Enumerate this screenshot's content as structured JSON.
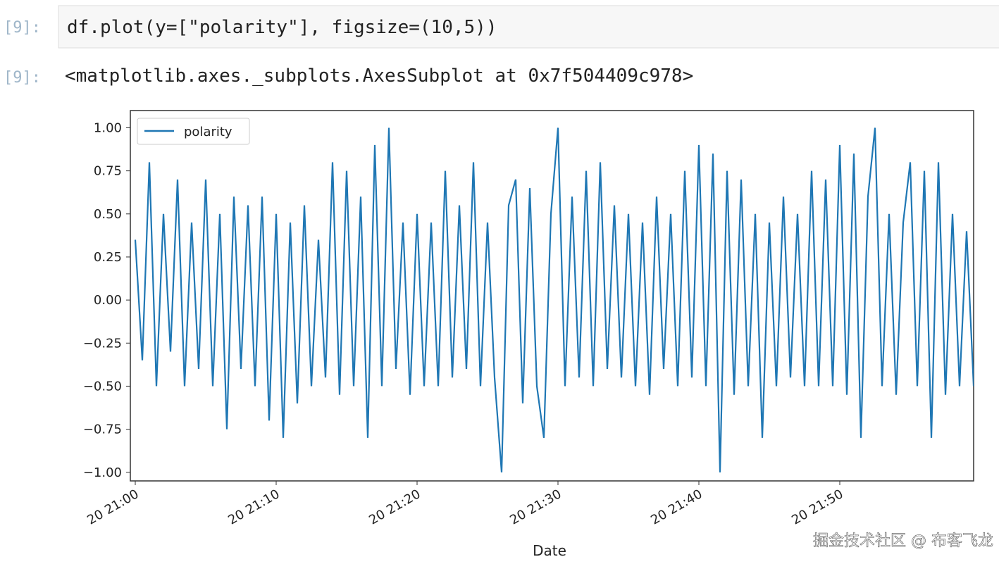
{
  "notebook": {
    "input_prompt": "[9]:",
    "code": "df.plot(y=[\"polarity\"], figsize=(10,5))",
    "output_prompt": "[9]:",
    "output_text": "<matplotlib.axes._subplots.AxesSubplot at 0x7f504409c978>",
    "watermark": "掘金技术社区 @ 布客飞龙"
  },
  "chart_data": {
    "type": "line",
    "x_label": "Date",
    "x": [
      0,
      0.5,
      1,
      1.5,
      2,
      2.5,
      3,
      3.5,
      4,
      4.5,
      5,
      5.5,
      6,
      6.5,
      7,
      7.5,
      8,
      8.5,
      9,
      9.5,
      10,
      10.5,
      11,
      11.5,
      12,
      12.5,
      13,
      13.5,
      14,
      14.5,
      15,
      15.5,
      16,
      16.5,
      17,
      17.5,
      18,
      18.5,
      19,
      19.5,
      20,
      20.5,
      21,
      21.5,
      22,
      22.5,
      23,
      23.5,
      24,
      24.5,
      25,
      25.5,
      26,
      26.5,
      27,
      27.5,
      28,
      28.5,
      29,
      29.5,
      30,
      30.5,
      31,
      31.5,
      32,
      32.5,
      33,
      33.5,
      34,
      34.5,
      35,
      35.5,
      36,
      36.5,
      37,
      37.5,
      38,
      38.5,
      39,
      39.5,
      40,
      40.5,
      41,
      41.5,
      42,
      42.5,
      43,
      43.5,
      44,
      44.5,
      45,
      45.5,
      46,
      46.5,
      47,
      47.5,
      48,
      48.5,
      49,
      49.5,
      50,
      50.5,
      51,
      51.5,
      52,
      52.5,
      53,
      53.5,
      54,
      54.5,
      55,
      55.5,
      56,
      56.5,
      57,
      57.5,
      58,
      58.5,
      59,
      59.5
    ],
    "series": [
      {
        "name": "polarity",
        "color": "#1f77b4",
        "values": [
          0.35,
          -0.35,
          0.8,
          -0.5,
          0.5,
          -0.3,
          0.7,
          -0.5,
          0.45,
          -0.4,
          0.7,
          -0.5,
          0.5,
          -0.75,
          0.6,
          -0.4,
          0.55,
          -0.5,
          0.6,
          -0.7,
          0.5,
          -0.8,
          0.45,
          -0.6,
          0.55,
          -0.5,
          0.35,
          -0.45,
          0.8,
          -0.55,
          0.75,
          -0.5,
          0.6,
          -0.8,
          0.9,
          -0.5,
          1.0,
          -0.4,
          0.45,
          -0.55,
          0.5,
          -0.5,
          0.45,
          -0.5,
          0.75,
          -0.45,
          0.55,
          -0.4,
          0.8,
          -0.5,
          0.45,
          -0.45,
          -1.0,
          0.55,
          0.7,
          -0.6,
          0.65,
          -0.5,
          -0.8,
          0.5,
          1.0,
          -0.5,
          0.6,
          -0.45,
          0.75,
          -0.5,
          0.8,
          -0.4,
          0.55,
          -0.45,
          0.5,
          -0.5,
          0.45,
          -0.55,
          0.6,
          -0.4,
          0.5,
          -0.5,
          0.75,
          -0.45,
          0.9,
          -0.5,
          0.85,
          -1.0,
          0.75,
          -0.55,
          0.7,
          -0.5,
          0.5,
          -0.8,
          0.45,
          -0.5,
          0.6,
          -0.45,
          0.5,
          -0.5,
          0.75,
          -0.5,
          0.7,
          -0.5,
          0.9,
          -0.55,
          0.85,
          -0.8,
          0.6,
          1.0,
          -0.5,
          0.5,
          -0.55,
          0.45,
          0.8,
          -0.5,
          0.75,
          -0.8,
          0.8,
          -0.55,
          0.5,
          -0.5,
          0.4,
          -0.5
        ]
      }
    ],
    "xlim": [
      -0.35,
      59.5
    ],
    "ylim": [
      -1.05,
      1.1
    ],
    "xticks": [
      {
        "value": 0,
        "label": "20 21:00"
      },
      {
        "value": 10,
        "label": "20 21:10"
      },
      {
        "value": 20,
        "label": "20 21:20"
      },
      {
        "value": 30,
        "label": "20 21:30"
      },
      {
        "value": 40,
        "label": "20 21:40"
      },
      {
        "value": 50,
        "label": "20 21:50"
      }
    ],
    "yticks": [
      {
        "value": 1,
        "label": "1.00"
      },
      {
        "value": 0.75,
        "label": "0.75"
      },
      {
        "value": 0.5,
        "label": "0.50"
      },
      {
        "value": 0.25,
        "label": "0.25"
      },
      {
        "value": 0,
        "label": "0.00"
      },
      {
        "value": -0.25,
        "label": "−0.25"
      },
      {
        "value": -0.5,
        "label": "−0.50"
      },
      {
        "value": -0.75,
        "label": "−0.75"
      },
      {
        "value": -1,
        "label": "−1.00"
      }
    ],
    "legend": "upper left"
  }
}
